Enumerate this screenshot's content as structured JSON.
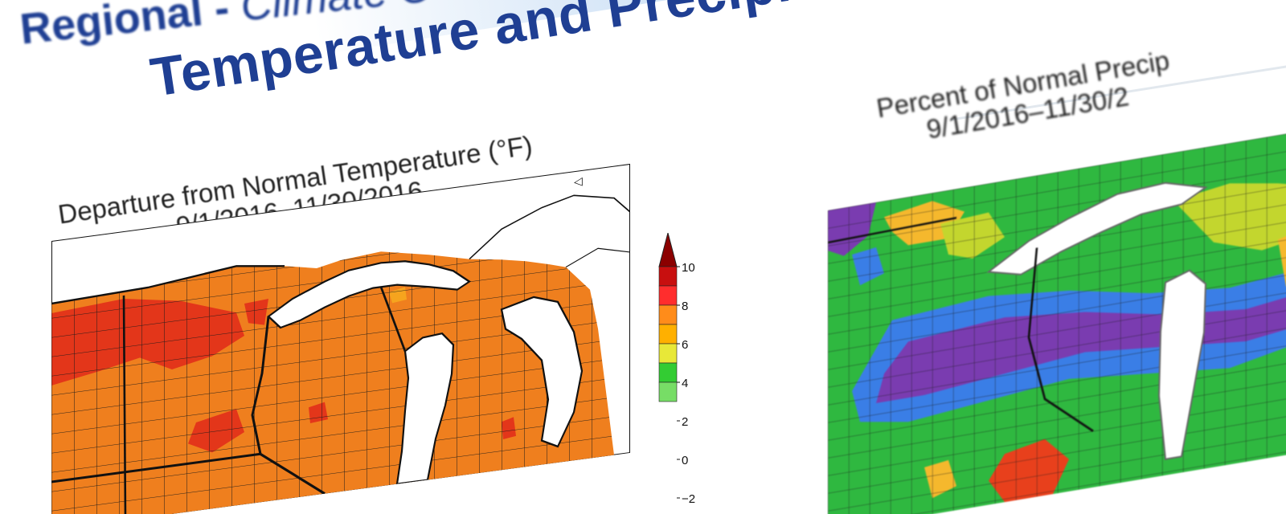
{
  "slide": {
    "header": {
      "prefix": "Regional - ",
      "suffix": "Climate O"
    },
    "title": "Temperature and Precipitation Anomal"
  },
  "temperature_map": {
    "title_line1": "Departure from Normal Temperature (°F)",
    "title_line2": "9/1/2016–11/30/2016",
    "legend": {
      "ticks": [
        "10",
        "8",
        "6",
        "4",
        "2",
        "0",
        "−2"
      ],
      "colors": [
        "#8b0000",
        "#c80f0f",
        "#ff2d2d",
        "#ff8c1a",
        "#ffb000",
        "#e8e838",
        "#33cc33",
        "#77dd66"
      ]
    },
    "palette": {
      "hot": "#e3361a",
      "warm": "#ef7f1e",
      "mild": "#f6a41e",
      "water": "#ffffff",
      "line": "#111111"
    }
  },
  "precip_map": {
    "title_line1": "Percent of Normal Precip",
    "title_line2": "9/1/2016–11/30/2",
    "palette": {
      "wet": "#7a3cb0",
      "moist": "#3a7ee6",
      "normal": "#2fb840",
      "dry": "#c3d62e",
      "drier": "#f5b82d",
      "driest": "#e8401c"
    }
  }
}
